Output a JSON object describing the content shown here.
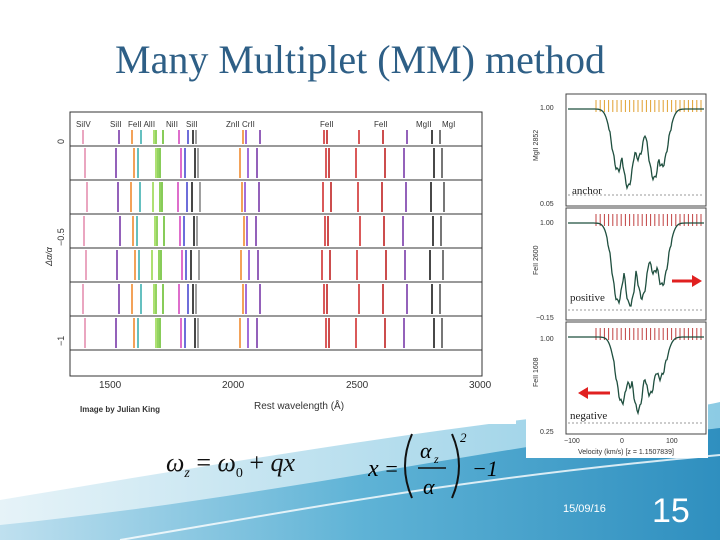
{
  "slide": {
    "title": "Many Multiplet (MM) method",
    "date": "15/09/16",
    "page_number": "15"
  },
  "left_figure": {
    "credit": "Image by Julian King",
    "x_axis_label": "Rest wavelength (Å)",
    "y_axis_label": "Δα/α",
    "x_ticks": [
      "1500",
      "2000",
      "2500",
      "3000"
    ],
    "y_ticks": [
      "0",
      "−0.5",
      "−1"
    ],
    "ion_labels": [
      "SiIV",
      "SiII",
      "FeII AlII",
      "NiII",
      "SiII",
      "ZnII CrII",
      "FeII",
      "FeII",
      "MgII",
      "MgI"
    ]
  },
  "right_figure": {
    "x_axis_label": "Velocity (km/s) [z = 1.1507839]",
    "x_ticks": [
      "−100",
      "0",
      "100"
    ],
    "panels": [
      {
        "ion": "MgII 2852",
        "label": "anchor",
        "top_tick": "1.00",
        "bottom_tick": "0.05"
      },
      {
        "ion": "FeII 2600",
        "label": "positive",
        "top_tick": "1.00",
        "bottom_tick": "−0.15"
      },
      {
        "ion": "FeII 1608",
        "label": "negative",
        "top_tick": "1.00",
        "bottom_tick": "0.25"
      }
    ]
  },
  "equations": {
    "eq1": "ωz = ω0 + qx",
    "eq2": "x = (αz / α)² − 1"
  },
  "colors": {
    "title": "#2e5f86",
    "swoosh": "#2f8fbf",
    "arrow": "#e02020"
  }
}
